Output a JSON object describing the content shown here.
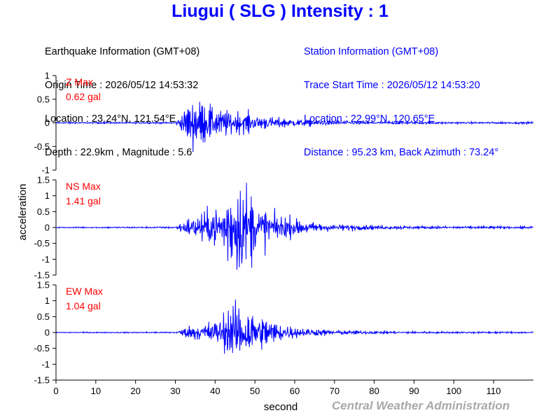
{
  "title": "Liugui ( SLG ) Intensity : 1",
  "earthquake_info": {
    "header": "Earthquake Information (GMT+08)",
    "origin_time": "Origin Time : 2026/05/12 14:53:32",
    "location": "Location : 23.24°N, 121.54°E",
    "depth_magnitude": "Depth : 22.9km , Magnitude : 5.6"
  },
  "station_info": {
    "header": "Station Information (GMT+08)",
    "trace_start": "Trace Start Time : 2026/05/12 14:53:20",
    "location": "Location : 22.99°N, 120.65°E",
    "distance_azimuth": "Distance : 95.23 km, Back Azimuth : 73.24°"
  },
  "footer": "Central Weather Administration",
  "colors": {
    "title": "#0000ff",
    "trace": "#0000ff",
    "peak_label": "#ff0000",
    "station_info": "#0000ff",
    "footer": "#a8a8a8"
  },
  "chart_data": [
    {
      "type": "line",
      "component": "Z",
      "label": "Z Max",
      "peak_text": "0.62 gal",
      "peak_value": 0.62,
      "ylim": [
        -1,
        1
      ],
      "yticks": [
        -1,
        -0.5,
        0,
        0.5,
        1
      ],
      "ytick_labels": [
        "-1",
        "-0.5",
        "0",
        "0.5",
        "1"
      ],
      "xlim": [
        0,
        120
      ],
      "envelope": {
        "t": [
          0,
          30,
          31,
          33,
          35,
          37,
          40,
          45,
          50,
          55,
          60,
          65,
          70,
          80,
          90,
          100,
          120
        ],
        "a": [
          0.012,
          0.015,
          0.1,
          0.3,
          0.45,
          0.32,
          0.25,
          0.2,
          0.14,
          0.1,
          0.07,
          0.05,
          0.04,
          0.025,
          0.02,
          0.018,
          0.018
        ]
      }
    },
    {
      "type": "line",
      "component": "NS",
      "label": "NS Max",
      "peak_text": "1.41 gal",
      "peak_value": 1.41,
      "ylim": [
        -1.5,
        1.5
      ],
      "yticks": [
        -1.5,
        -1,
        -0.5,
        0,
        0.5,
        1,
        1.5
      ],
      "ytick_labels": [
        "-1.5",
        "-1",
        "-0.5",
        "0",
        "0.5",
        "1",
        "1.5"
      ],
      "xlim": [
        0,
        120
      ],
      "envelope": {
        "t": [
          0,
          30,
          32,
          35,
          40,
          43,
          46,
          48,
          50,
          55,
          60,
          65,
          70,
          80,
          90,
          100,
          120
        ],
        "a": [
          0.012,
          0.02,
          0.15,
          0.28,
          0.45,
          0.85,
          1.2,
          0.85,
          0.55,
          0.35,
          0.2,
          0.12,
          0.08,
          0.05,
          0.035,
          0.03,
          0.03
        ]
      }
    },
    {
      "type": "line",
      "component": "EW",
      "label": "EW Max",
      "peak_text": "1.04 gal",
      "peak_value": 1.04,
      "ylim": [
        -1.5,
        1.5
      ],
      "yticks": [
        -1.5,
        -1,
        -0.5,
        0,
        0.5,
        1,
        1.5
      ],
      "ytick_labels": [
        "-1.5",
        "-1",
        "-0.5",
        "0",
        "0.5",
        "1",
        "1.5"
      ],
      "xlim": [
        0,
        120
      ],
      "envelope": {
        "t": [
          0,
          30,
          32,
          35,
          40,
          43,
          46,
          48,
          50,
          55,
          60,
          65,
          70,
          80,
          90,
          100,
          120
        ],
        "a": [
          0.012,
          0.02,
          0.12,
          0.2,
          0.35,
          0.6,
          0.9,
          0.75,
          0.55,
          0.3,
          0.16,
          0.1,
          0.07,
          0.045,
          0.03,
          0.025,
          0.025
        ]
      }
    }
  ],
  "axes": {
    "xlabel": "second",
    "ylabel": "acceleration",
    "xticks": [
      0,
      10,
      20,
      30,
      40,
      50,
      60,
      70,
      80,
      90,
      100,
      110
    ],
    "xtick_labels": [
      "0",
      "10",
      "20",
      "30",
      "40",
      "50",
      "60",
      "70",
      "80",
      "90",
      "100",
      "110"
    ]
  }
}
